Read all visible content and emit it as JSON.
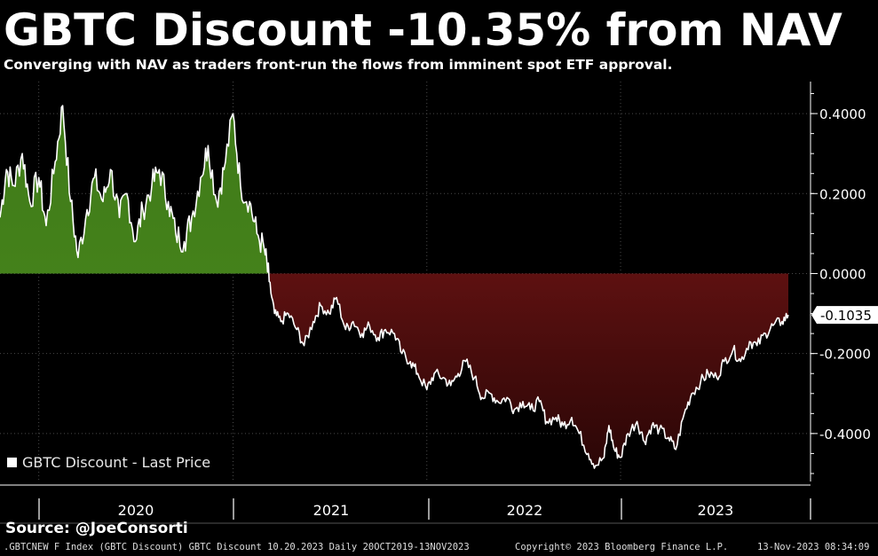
{
  "header": {
    "title": "GBTC Discount -10.35% from NAV",
    "subtitle": "Converging with NAV as traders front-run the flows from imminent spot ETF approval."
  },
  "legend": {
    "label": "GBTC Discount - Last Price"
  },
  "source": "Source: @JoeConsorti",
  "footer": {
    "index": ".GBTCNEW F Index (GBTC Discount) GBTC Discount 10.20.2023  Daily 20OCT2019-13NOV2023",
    "copyright": "Copyright© 2023 Bloomberg Finance L.P.",
    "timestamp": "13-Nov-2023 08:34:09"
  },
  "colors": {
    "positive_fill": "#4a8a1e",
    "negative_fill": "#8a1a1a",
    "line": "#ffffff",
    "grid": "#4a4a4a"
  },
  "chart_data": {
    "type": "area",
    "series": [
      {
        "name": "GBTC Discount - Last Price",
        "last_value_label": "-0.1035",
        "points": [
          [
            "2019-10-20",
            0.14
          ],
          [
            "2019-11-01",
            0.26
          ],
          [
            "2019-11-15",
            0.22
          ],
          [
            "2019-12-01",
            0.3
          ],
          [
            "2019-12-15",
            0.18
          ],
          [
            "2020-01-01",
            0.24
          ],
          [
            "2020-01-15",
            0.12
          ],
          [
            "2020-02-01",
            0.28
          ],
          [
            "2020-02-15",
            0.42
          ],
          [
            "2020-03-01",
            0.18
          ],
          [
            "2020-03-15",
            0.04
          ],
          [
            "2020-04-01",
            0.16
          ],
          [
            "2020-04-15",
            0.24
          ],
          [
            "2020-05-01",
            0.18
          ],
          [
            "2020-05-15",
            0.26
          ],
          [
            "2020-06-01",
            0.14
          ],
          [
            "2020-06-15",
            0.2
          ],
          [
            "2020-07-01",
            0.08
          ],
          [
            "2020-07-15",
            0.16
          ],
          [
            "2020-08-01",
            0.22
          ],
          [
            "2020-08-15",
            0.26
          ],
          [
            "2020-09-01",
            0.18
          ],
          [
            "2020-09-15",
            0.1
          ],
          [
            "2020-10-01",
            0.08
          ],
          [
            "2020-10-15",
            0.14
          ],
          [
            "2020-11-01",
            0.24
          ],
          [
            "2020-11-15",
            0.32
          ],
          [
            "2020-12-01",
            0.18
          ],
          [
            "2020-12-15",
            0.26
          ],
          [
            "2021-01-01",
            0.4
          ],
          [
            "2021-01-15",
            0.22
          ],
          [
            "2021-02-01",
            0.18
          ],
          [
            "2021-02-15",
            0.1
          ],
          [
            "2021-03-01",
            0.06
          ],
          [
            "2021-03-10",
            -0.02
          ],
          [
            "2021-03-20",
            -0.1
          ],
          [
            "2021-04-01",
            -0.12
          ],
          [
            "2021-04-15",
            -0.1
          ],
          [
            "2021-05-01",
            -0.14
          ],
          [
            "2021-05-15",
            -0.18
          ],
          [
            "2021-06-01",
            -0.12
          ],
          [
            "2021-06-15",
            -0.08
          ],
          [
            "2021-07-01",
            -0.1
          ],
          [
            "2021-07-15",
            -0.06
          ],
          [
            "2021-08-01",
            -0.14
          ],
          [
            "2021-08-15",
            -0.12
          ],
          [
            "2021-09-01",
            -0.15
          ],
          [
            "2021-09-15",
            -0.13
          ],
          [
            "2021-10-01",
            -0.16
          ],
          [
            "2021-10-15",
            -0.14
          ],
          [
            "2021-11-01",
            -0.15
          ],
          [
            "2021-11-15",
            -0.2
          ],
          [
            "2021-12-01",
            -0.22
          ],
          [
            "2021-12-15",
            -0.25
          ],
          [
            "2022-01-01",
            -0.29
          ],
          [
            "2022-01-15",
            -0.25
          ],
          [
            "2022-02-01",
            -0.26
          ],
          [
            "2022-02-15",
            -0.28
          ],
          [
            "2022-03-01",
            -0.25
          ],
          [
            "2022-03-15",
            -0.22
          ],
          [
            "2022-04-01",
            -0.26
          ],
          [
            "2022-04-15",
            -0.31
          ],
          [
            "2022-05-01",
            -0.3
          ],
          [
            "2022-05-15",
            -0.32
          ],
          [
            "2022-06-01",
            -0.31
          ],
          [
            "2022-06-15",
            -0.34
          ],
          [
            "2022-07-01",
            -0.32
          ],
          [
            "2022-07-15",
            -0.34
          ],
          [
            "2022-08-01",
            -0.32
          ],
          [
            "2022-08-15",
            -0.37
          ],
          [
            "2022-09-01",
            -0.36
          ],
          [
            "2022-09-15",
            -0.38
          ],
          [
            "2022-10-01",
            -0.36
          ],
          [
            "2022-10-15",
            -0.4
          ],
          [
            "2022-11-01",
            -0.45
          ],
          [
            "2022-11-15",
            -0.48
          ],
          [
            "2022-12-01",
            -0.46
          ],
          [
            "2022-12-10",
            -0.38
          ],
          [
            "2022-12-20",
            -0.44
          ],
          [
            "2023-01-01",
            -0.46
          ],
          [
            "2023-01-15",
            -0.4
          ],
          [
            "2023-02-01",
            -0.37
          ],
          [
            "2023-02-15",
            -0.42
          ],
          [
            "2023-03-01",
            -0.38
          ],
          [
            "2023-03-15",
            -0.39
          ],
          [
            "2023-04-01",
            -0.41
          ],
          [
            "2023-04-15",
            -0.44
          ],
          [
            "2023-05-01",
            -0.35
          ],
          [
            "2023-05-15",
            -0.3
          ],
          [
            "2023-06-01",
            -0.27
          ],
          [
            "2023-06-15",
            -0.25
          ],
          [
            "2023-07-01",
            -0.26
          ],
          [
            "2023-07-15",
            -0.22
          ],
          [
            "2023-08-01",
            -0.19
          ],
          [
            "2023-08-15",
            -0.22
          ],
          [
            "2023-09-01",
            -0.17
          ],
          [
            "2023-09-15",
            -0.18
          ],
          [
            "2023-10-01",
            -0.15
          ],
          [
            "2023-10-15",
            -0.13
          ],
          [
            "2023-11-01",
            -0.12
          ],
          [
            "2023-11-13",
            -0.1035
          ]
        ]
      }
    ],
    "x_range": [
      "2019-10-20",
      "2023-11-13"
    ],
    "x_ticks": [
      "2020",
      "2021",
      "2022",
      "2023"
    ],
    "y_range": [
      -0.52,
      0.48
    ],
    "y_ticks": [
      0.4,
      0.2,
      0.0,
      -0.2,
      -0.4
    ],
    "y_tick_labels": [
      "0.4000",
      "0.2000",
      "0.0000",
      "-0.2000",
      "-0.4000"
    ],
    "grid": true,
    "legend_position": "bottom-left"
  }
}
